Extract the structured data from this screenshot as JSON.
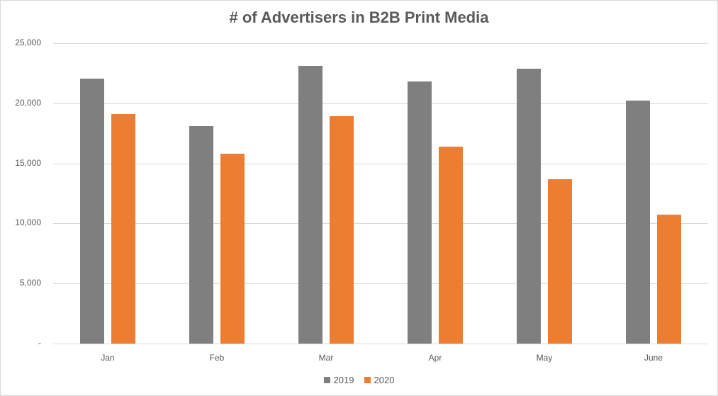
{
  "chart_data": {
    "type": "bar",
    "title": "# of Advertisers in B2B Print Media",
    "xlabel": "",
    "ylabel": "",
    "categories": [
      "Jan",
      "Feb",
      "Mar",
      "Apr",
      "May",
      "June"
    ],
    "series": [
      {
        "name": "2019",
        "color": "#7f7f7f",
        "values": [
          22050,
          18100,
          23100,
          21800,
          22900,
          20200
        ]
      },
      {
        "name": "2020",
        "color": "#ed7d31",
        "values": [
          19100,
          15800,
          18900,
          16400,
          13700,
          10750
        ]
      }
    ],
    "ylim": [
      0,
      25000
    ],
    "yticks": [
      0,
      5000,
      10000,
      15000,
      20000,
      25000
    ],
    "ytick_labels": [
      "-",
      "5,000",
      "10,000",
      "15,000",
      "20,000",
      "25,000"
    ],
    "grid": true,
    "legend_position": "bottom"
  },
  "title": "# of Advertisers in B2B Print Media",
  "legend": [
    {
      "label": "2019",
      "color": "#7f7f7f"
    },
    {
      "label": "2020",
      "color": "#ed7d31"
    }
  ]
}
